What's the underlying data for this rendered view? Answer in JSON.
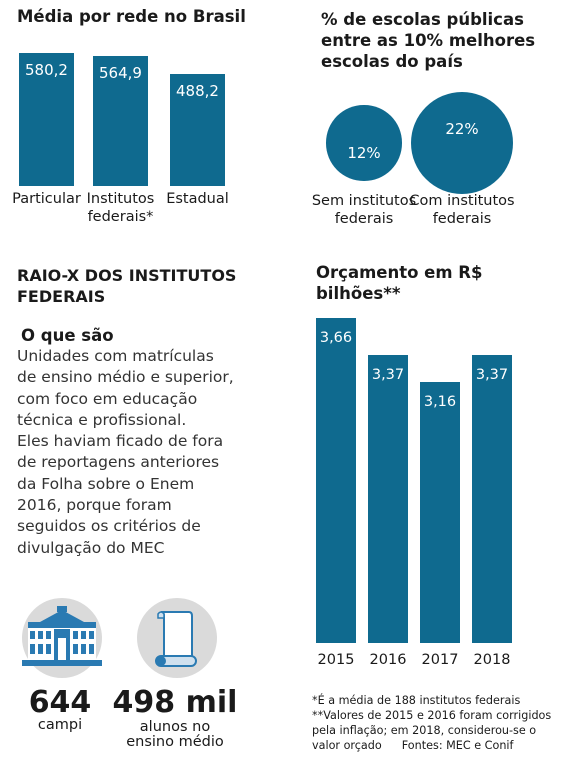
{
  "colors": {
    "accent": "#0f6a8f",
    "icon_bg": "#dadada",
    "icon_fg": "#2a7ab2"
  },
  "chart_data": [
    {
      "type": "bar",
      "title": "Média por rede no Brasil",
      "categories": [
        "Particular",
        "Institutos federais*",
        "Estadual"
      ],
      "category_lines": [
        [
          "Particular"
        ],
        [
          "Institutos",
          "federais*"
        ],
        [
          "Estadual"
        ]
      ],
      "values": [
        580.2,
        564.9,
        488.2
      ],
      "value_labels": [
        "580,2",
        "564,9",
        "488,2"
      ],
      "ylim": [
        0,
        600
      ]
    },
    {
      "type": "bubble",
      "title_lines": [
        "% de escolas públicas",
        "entre as 10% melhores",
        "escolas do país"
      ],
      "categories": [
        "Sem institutos federais",
        "Com institutos federais"
      ],
      "category_lines": [
        [
          "Sem institutos",
          "federais"
        ],
        [
          "Com institutos",
          "federais"
        ]
      ],
      "values": [
        12,
        22
      ],
      "value_labels": [
        "12%",
        "22%"
      ]
    },
    {
      "type": "bar",
      "title": "Orçamento em R$ bilhões**",
      "categories": [
        "2015",
        "2016",
        "2017",
        "2018"
      ],
      "values": [
        3.66,
        3.37,
        3.16,
        3.37
      ],
      "value_labels": [
        "3,66",
        "3,37",
        "3,16",
        "3,37"
      ],
      "ylim": [
        0,
        3.66
      ]
    }
  ],
  "raio_x": {
    "title_lines": [
      "RAIO-X DOS INSTITUTOS",
      "FEDERAIS"
    ],
    "heading": "O que são",
    "description_lines": [
      "Unidades com matrículas",
      "de ensino médio e superior,",
      "com foco em educação",
      "técnica e profissional.",
      "Eles haviam ficado de fora",
      "de reportagens anteriores",
      "da Folha sobre o Enem",
      "2016, porque foram",
      "seguidos os critérios de",
      "divulgação do MEC"
    ]
  },
  "stats": [
    {
      "icon": "building-icon",
      "value": "644",
      "label_lines": [
        "campi"
      ]
    },
    {
      "icon": "diploma-icon",
      "value": "498 mil",
      "label_lines": [
        "alunos no",
        "ensino médio"
      ]
    }
  ],
  "notes": {
    "lines": [
      "*É a média de 188 institutos federais",
      "**Valores de 2015 e 2016 foram corrigidos",
      "pela inflação; em 2018, considerou-se o",
      "valor orçado"
    ],
    "sources": "Fontes: MEC e Conif"
  }
}
